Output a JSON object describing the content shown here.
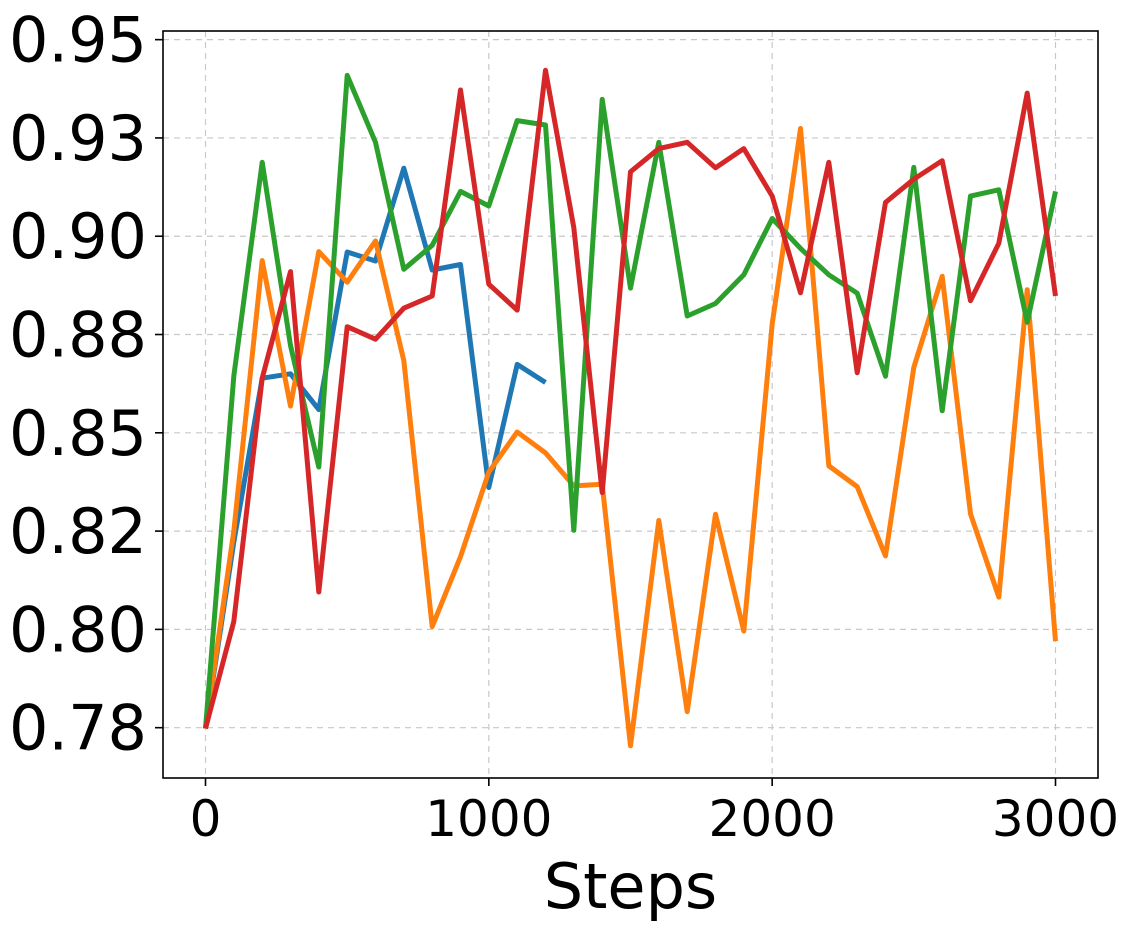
{
  "chart_data": {
    "type": "line",
    "title": "",
    "xlabel": "Steps",
    "ylabel": "",
    "xlim": [
      -150,
      3150
    ],
    "ylim": [
      0.7647,
      0.9547
    ],
    "grid": true,
    "xticks": [
      0,
      1000,
      2000,
      3000
    ],
    "xtick_labels": [
      "0",
      "1000",
      "2000",
      "3000"
    ],
    "yticks": [
      0.7775,
      0.8025,
      0.8275,
      0.8525,
      0.8775,
      0.9025,
      0.9275,
      0.9525
    ],
    "ytick_labels": [
      "0.78",
      "0.80",
      "0.82",
      "0.85",
      "0.88",
      "0.90",
      "0.93",
      "0.95"
    ],
    "series": [
      {
        "color": "#1f77b4",
        "x": [
          0,
          100,
          200,
          300,
          400,
          500,
          600,
          700,
          800,
          900,
          1000,
          1100,
          1200
        ],
        "y": [
          0.7773,
          0.8247,
          0.8664,
          0.8675,
          0.8584,
          0.8985,
          0.8962,
          0.9198,
          0.8939,
          0.8953,
          0.8386,
          0.8699,
          0.8653
        ]
      },
      {
        "color": "#ff7f0e",
        "x": [
          0,
          100,
          200,
          300,
          400,
          500,
          600,
          700,
          800,
          900,
          1000,
          1100,
          1200,
          1300,
          1400,
          1500,
          1600,
          1700,
          1800,
          1900,
          2000,
          2100,
          2200,
          2300,
          2400,
          2500,
          2600,
          2700,
          2800,
          2900,
          3000
        ],
        "y": [
          0.7773,
          0.8275,
          0.8963,
          0.8593,
          0.8986,
          0.8908,
          0.9013,
          0.8709,
          0.8032,
          0.821,
          0.8425,
          0.8527,
          0.8474,
          0.839,
          0.8394,
          0.7729,
          0.8302,
          0.7816,
          0.8318,
          0.8021,
          0.8802,
          0.9299,
          0.8441,
          0.8388,
          0.8212,
          0.8691,
          0.8923,
          0.8319,
          0.8107,
          0.8889,
          0.7995
        ]
      },
      {
        "color": "#2ca02c",
        "x": [
          0,
          100,
          200,
          300,
          400,
          500,
          600,
          700,
          800,
          900,
          1000,
          1100,
          1200,
          1300,
          1400,
          1500,
          1600,
          1700,
          1800,
          1900,
          2000,
          2100,
          2200,
          2300,
          2400,
          2500,
          2600,
          2700,
          2800,
          2900,
          3000
        ],
        "y": [
          0.7773,
          0.8669,
          0.9213,
          0.8747,
          0.8438,
          0.9434,
          0.9264,
          0.8941,
          0.9002,
          0.9139,
          0.9102,
          0.9319,
          0.9308,
          0.8277,
          0.9373,
          0.8893,
          0.9264,
          0.8822,
          0.8854,
          0.8927,
          0.907,
          0.8994,
          0.8927,
          0.888,
          0.8669,
          0.92,
          0.8581,
          0.9127,
          0.9143,
          0.8806,
          0.9139
        ]
      },
      {
        "color": "#d62728",
        "x": [
          0,
          100,
          200,
          300,
          400,
          500,
          600,
          700,
          800,
          900,
          1000,
          1100,
          1200,
          1300,
          1400,
          1500,
          1600,
          1700,
          1800,
          1900,
          2000,
          2100,
          2200,
          2300,
          2400,
          2500,
          2600,
          2700,
          2800,
          2900,
          3000
        ],
        "y": [
          0.7773,
          0.8045,
          0.8664,
          0.8935,
          0.812,
          0.8795,
          0.8763,
          0.8842,
          0.8873,
          0.9397,
          0.8903,
          0.8837,
          0.9447,
          0.9047,
          0.8373,
          0.9189,
          0.9248,
          0.9264,
          0.9199,
          0.9248,
          0.9127,
          0.8881,
          0.9213,
          0.8678,
          0.9111,
          0.917,
          0.9217,
          0.8861,
          0.9007,
          0.9389,
          0.8873
        ]
      }
    ]
  }
}
